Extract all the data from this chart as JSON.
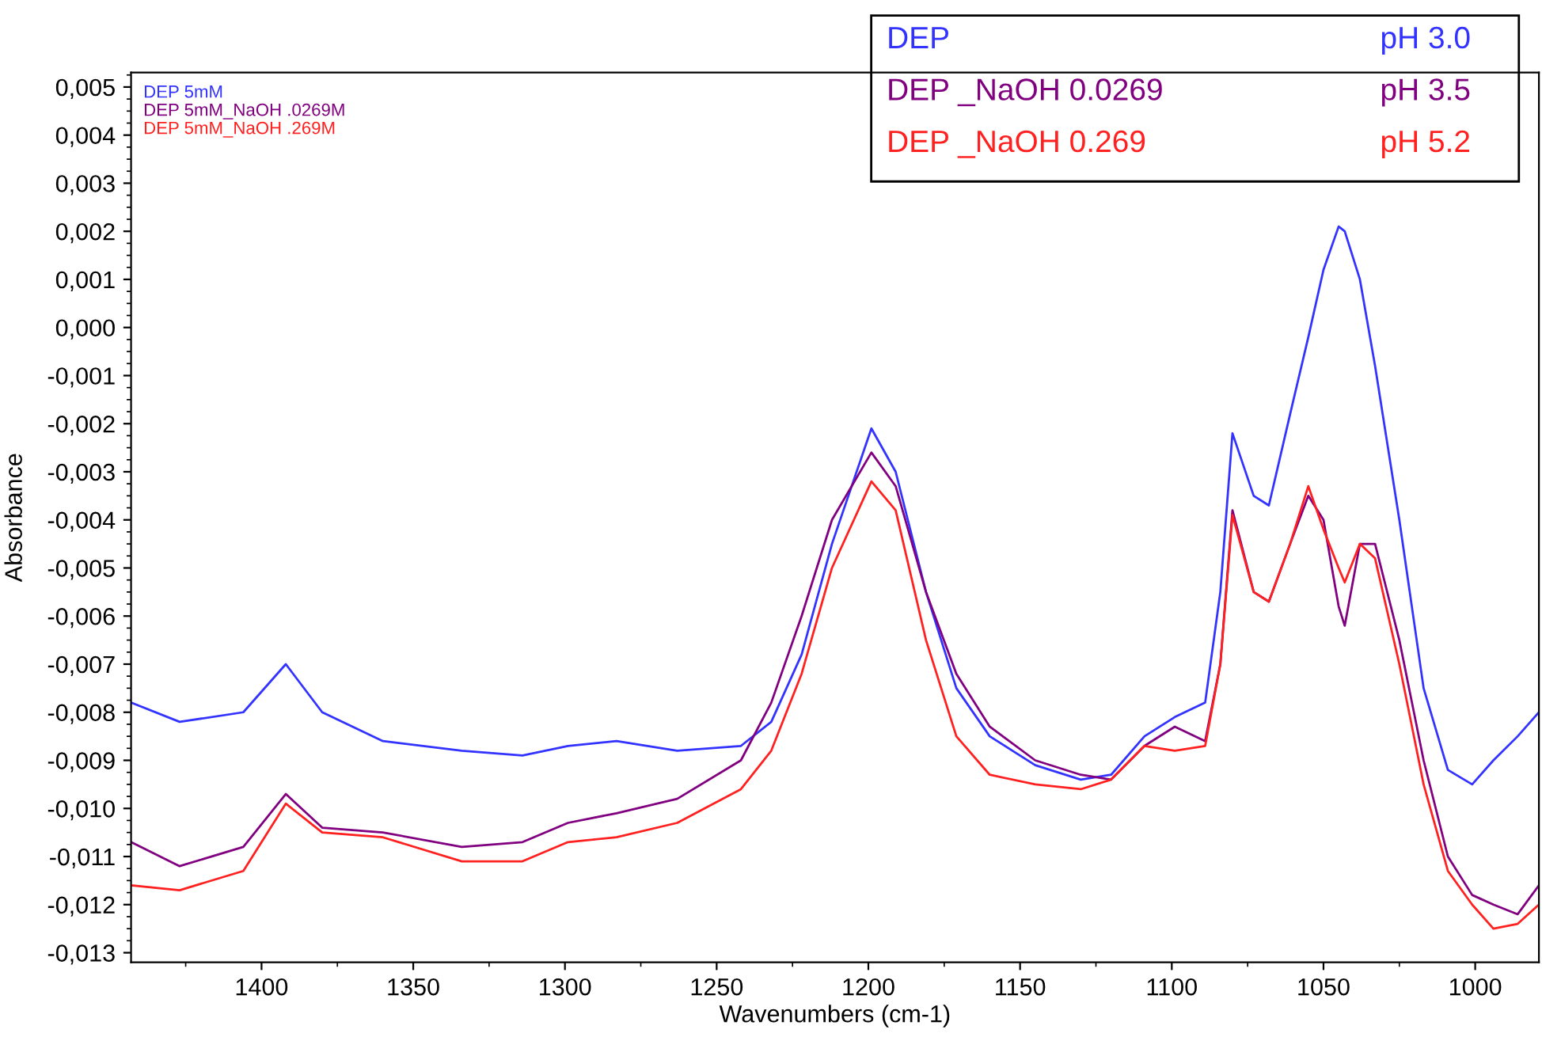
{
  "chart_data": {
    "type": "line",
    "xlabel": "Wavenumbers (cm-1)",
    "ylabel": "Absorbance",
    "x": [
      1443,
      1427,
      1406,
      1392,
      1380,
      1360,
      1334,
      1314,
      1299,
      1283,
      1263,
      1242,
      1232,
      1222,
      1212,
      1199,
      1191,
      1181,
      1171,
      1160,
      1145,
      1130,
      1120,
      1109,
      1099,
      1089,
      1084,
      1080,
      1073,
      1068,
      1061,
      1055,
      1050,
      1045,
      1043,
      1038,
      1033,
      1025,
      1017,
      1009,
      1001,
      994,
      986,
      979
    ],
    "series": [
      {
        "name": "DEP 5mM",
        "color": "#3333ff",
        "values": [
          -0.0078,
          -0.0082,
          -0.008,
          -0.007,
          -0.008,
          -0.0086,
          -0.0088,
          -0.0089,
          -0.0087,
          -0.0086,
          -0.0088,
          -0.0087,
          -0.0082,
          -0.0068,
          -0.0045,
          -0.0021,
          -0.003,
          -0.0055,
          -0.0075,
          -0.0085,
          -0.0091,
          -0.0094,
          -0.0093,
          -0.0085,
          -0.0081,
          -0.0078,
          -0.0055,
          -0.0022,
          -0.0035,
          -0.0037,
          -0.0018,
          -0.0002,
          0.0012,
          0.0021,
          0.002,
          0.001,
          -0.0008,
          -0.004,
          -0.0075,
          -0.0092,
          -0.0095,
          -0.009,
          -0.0085,
          -0.008
        ]
      },
      {
        "name": "DEP 5mM_NaOH .0269M",
        "color": "#800080",
        "values": [
          -0.0107,
          -0.0112,
          -0.0108,
          -0.0097,
          -0.0104,
          -0.0105,
          -0.0108,
          -0.0107,
          -0.0103,
          -0.0101,
          -0.0098,
          -0.009,
          -0.0078,
          -0.006,
          -0.004,
          -0.0026,
          -0.0033,
          -0.0055,
          -0.0072,
          -0.0083,
          -0.009,
          -0.0093,
          -0.0094,
          -0.0087,
          -0.0083,
          -0.0086,
          -0.007,
          -0.0038,
          -0.0055,
          -0.0057,
          -0.0045,
          -0.0035,
          -0.004,
          -0.0058,
          -0.0062,
          -0.0045,
          -0.0045,
          -0.0065,
          -0.009,
          -0.011,
          -0.0118,
          -0.012,
          -0.0122,
          -0.0116
        ]
      },
      {
        "name": "DEP 5mM_NaOH .269M",
        "color": "#ff2020",
        "values": [
          -0.0116,
          -0.0117,
          -0.0113,
          -0.0099,
          -0.0105,
          -0.0106,
          -0.0111,
          -0.0111,
          -0.0107,
          -0.0106,
          -0.0103,
          -0.0096,
          -0.0088,
          -0.0072,
          -0.005,
          -0.0032,
          -0.0038,
          -0.0065,
          -0.0085,
          -0.0093,
          -0.0095,
          -0.0096,
          -0.0094,
          -0.0087,
          -0.0088,
          -0.0087,
          -0.007,
          -0.0039,
          -0.0055,
          -0.0057,
          -0.0045,
          -0.0033,
          -0.0042,
          -0.005,
          -0.0053,
          -0.0045,
          -0.0048,
          -0.007,
          -0.0095,
          -0.0113,
          -0.012,
          -0.0125,
          -0.0124,
          -0.012
        ]
      }
    ],
    "annotations": [
      "DEP",
      "pH 3.0",
      "DEP _NaOH 0.0269",
      "pH 3.5",
      "DEP _NaOH 0.269",
      "pH 5.2"
    ],
    "xlim": [
      1443,
      979
    ],
    "xticks": [
      1400,
      1350,
      1300,
      1250,
      1200,
      1150,
      1100,
      1050,
      1000
    ],
    "ylim": [
      -0.0132,
      0.0053
    ],
    "yticks": [
      {
        "value": 0.005,
        "label": "0,005"
      },
      {
        "value": 0.004,
        "label": "0,004"
      },
      {
        "value": 0.003,
        "label": "0,003"
      },
      {
        "value": 0.002,
        "label": "0,002"
      },
      {
        "value": 0.001,
        "label": "0,001"
      },
      {
        "value": 0.0,
        "label": "0,000"
      },
      {
        "value": -0.001,
        "label": "-0,001"
      },
      {
        "value": -0.002,
        "label": "-0,002"
      },
      {
        "value": -0.003,
        "label": "-0,003"
      },
      {
        "value": -0.004,
        "label": "-0,004"
      },
      {
        "value": -0.005,
        "label": "-0,005"
      },
      {
        "value": -0.006,
        "label": "-0,006"
      },
      {
        "value": -0.007,
        "label": "-0,007"
      },
      {
        "value": -0.008,
        "label": "-0,008"
      },
      {
        "value": -0.009,
        "label": "-0,009"
      },
      {
        "value": -0.01,
        "label": "-0,010"
      },
      {
        "value": -0.011,
        "label": "-0,011"
      },
      {
        "value": -0.012,
        "label": "-0,012"
      },
      {
        "value": -0.013,
        "label": "-0,013"
      }
    ],
    "grid": false,
    "legend": "top left",
    "marker": "none",
    "line_style": "solid"
  }
}
